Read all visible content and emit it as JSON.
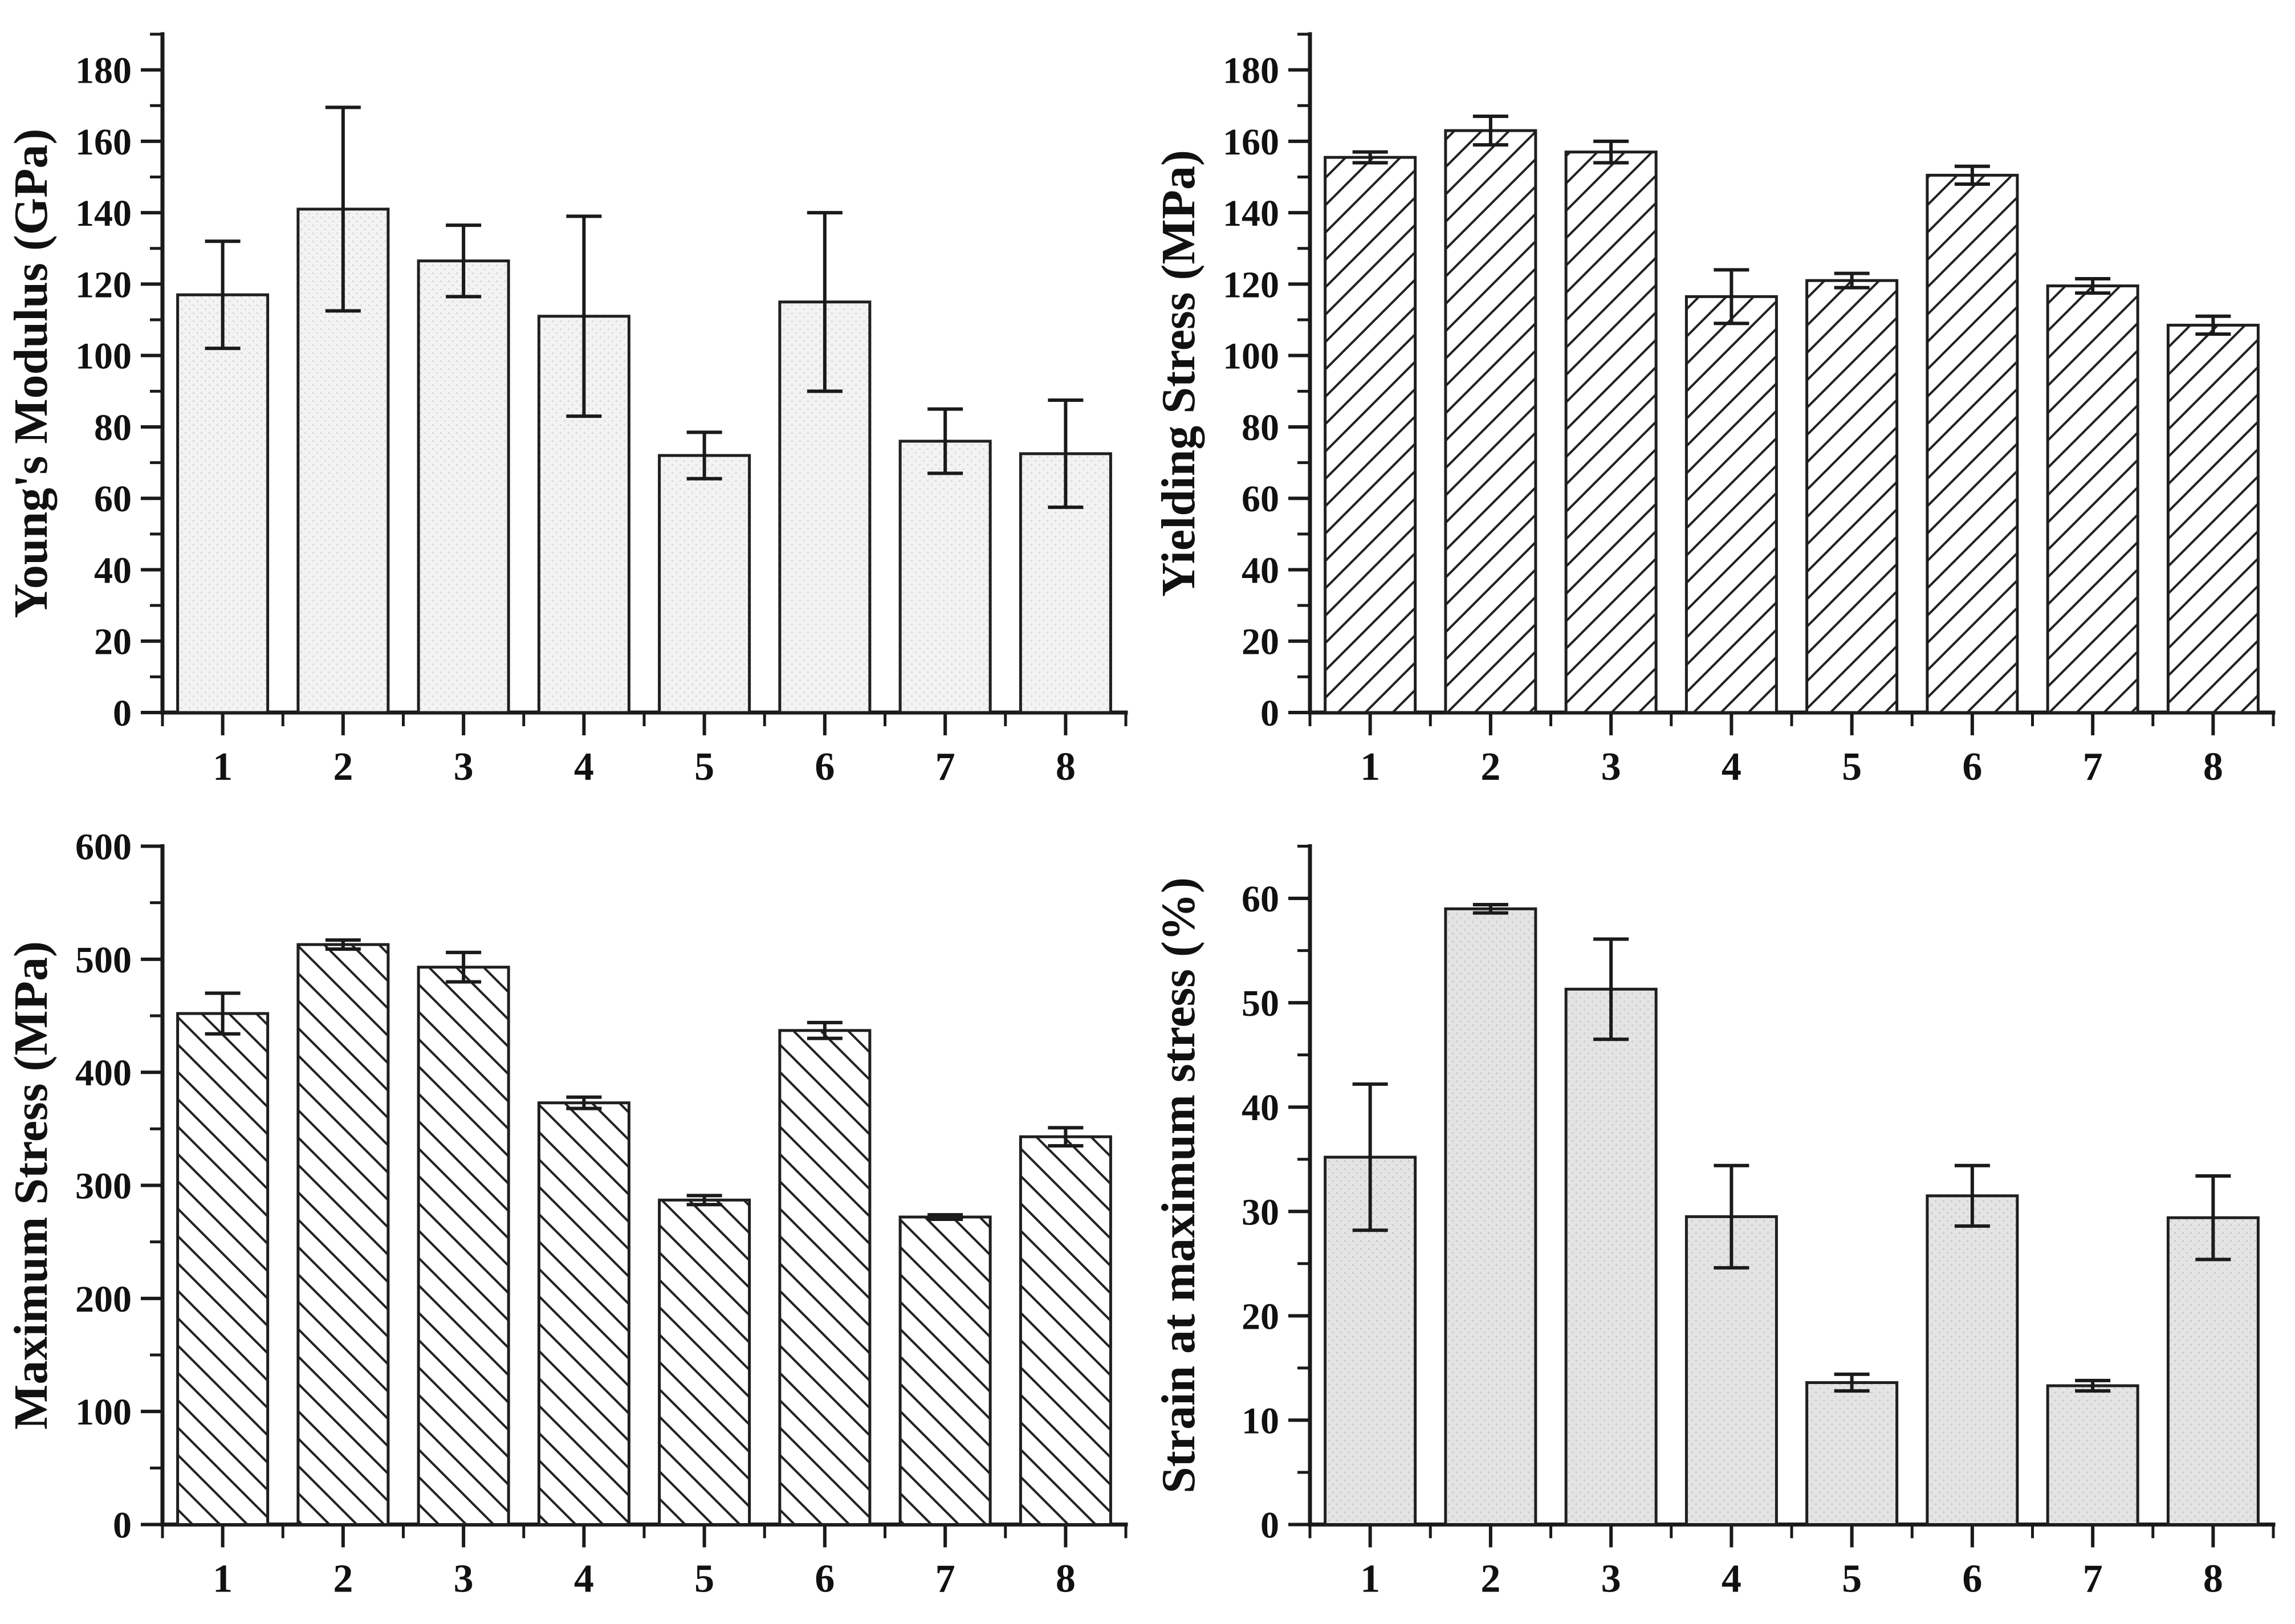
{
  "figure": {
    "background": "#ffffff",
    "layout": "2x2-grid",
    "panel_count": 4
  },
  "colors": {
    "axis": "#1a1a1a",
    "bar_stroke": "#1f1f1f",
    "errorbar": "#1a1a1a",
    "fill_dots_light": "#f3f3f3",
    "fill_dots_light_dot": "#dcdcdc",
    "fill_dots_gray": "#e4e4e4",
    "fill_dots_gray_dot": "#cccccc",
    "hatch_line": "#222222",
    "hatch_bg": "#ffffff",
    "text": "#111111"
  },
  "chart_data": [
    {
      "type": "bar",
      "title": "",
      "ylabel": "Young's Modulus (GPa)",
      "xlabel": "",
      "categories": [
        "1",
        "2",
        "3",
        "4",
        "5",
        "6",
        "7",
        "8"
      ],
      "values": [
        117,
        141,
        126.5,
        111,
        72,
        115,
        76,
        72.5
      ],
      "errors": [
        15,
        28.5,
        10,
        28,
        6.5,
        25,
        9,
        15
      ],
      "ylim": [
        0,
        190
      ],
      "ytick_step": 20,
      "ytick_minor_step": 10,
      "ytick_label_max": 180,
      "bar_style": "dots-light",
      "grid": false,
      "legend": "none"
    },
    {
      "type": "bar",
      "title": "",
      "ylabel": "Yielding Stress (MPa)",
      "xlabel": "",
      "categories": [
        "1",
        "2",
        "3",
        "4",
        "5",
        "6",
        "7",
        "8"
      ],
      "values": [
        155.5,
        163,
        157,
        116.5,
        121,
        150.5,
        119.5,
        108.5
      ],
      "errors": [
        1.5,
        4,
        3,
        7.5,
        2,
        2.5,
        2,
        2.5
      ],
      "ylim": [
        0,
        190
      ],
      "ytick_step": 20,
      "ytick_minor_step": 10,
      "ytick_label_max": 180,
      "bar_style": "hatch-forward",
      "grid": false,
      "legend": "none"
    },
    {
      "type": "bar",
      "title": "",
      "ylabel": "Maximum Stress (MPa)",
      "xlabel": "",
      "categories": [
        "1",
        "2",
        "3",
        "4",
        "5",
        "6",
        "7",
        "8"
      ],
      "values": [
        452,
        513,
        493,
        373,
        287,
        437,
        272,
        343
      ],
      "errors": [
        18,
        4,
        13,
        5,
        4,
        7,
        2,
        8
      ],
      "ylim": [
        0,
        600
      ],
      "ytick_step": 100,
      "ytick_minor_step": 50,
      "ytick_label_max": 600,
      "bar_style": "hatch-backward",
      "grid": false,
      "legend": "none"
    },
    {
      "type": "bar",
      "title": "",
      "ylabel": "Strain at maximum stress (%)",
      "xlabel": "",
      "categories": [
        "1",
        "2",
        "3",
        "4",
        "5",
        "6",
        "7",
        "8"
      ],
      "values": [
        35.2,
        59,
        51.3,
        29.5,
        13.6,
        31.5,
        13.3,
        29.4
      ],
      "errors": [
        7,
        0.4,
        4.8,
        4.9,
        0.8,
        2.9,
        0.5,
        4
      ],
      "ylim": [
        0,
        65
      ],
      "ytick_step": 10,
      "ytick_minor_step": 5,
      "ytick_label_max": 60,
      "bar_style": "dots-gray",
      "grid": false,
      "legend": "none"
    }
  ]
}
